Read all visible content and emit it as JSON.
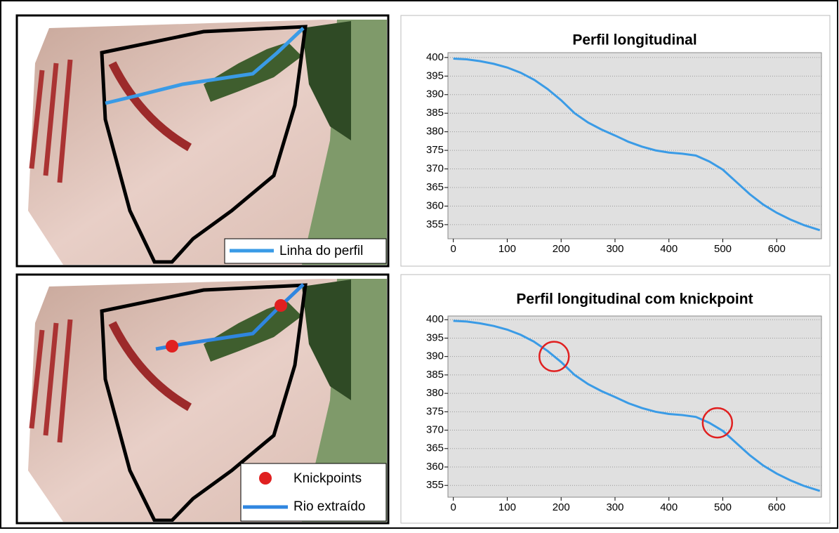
{
  "maps": [
    {
      "legend": [
        "Linha do perfil"
      ]
    },
    {
      "legend": [
        "Knickpoints",
        "Rio extraído"
      ]
    }
  ],
  "chart_data": [
    {
      "type": "line",
      "title": "Perfil longitudinal",
      "x": [
        0,
        25,
        50,
        75,
        100,
        125,
        150,
        175,
        200,
        225,
        250,
        275,
        300,
        325,
        350,
        375,
        400,
        425,
        450,
        475,
        500,
        525,
        550,
        575,
        600,
        625,
        650,
        680
      ],
      "series": [
        {
          "color": "#3a9be6",
          "values": [
            399.7,
            399.5,
            399,
            398.3,
            397.3,
            395.9,
            394,
            391.5,
            388.5,
            385,
            382.5,
            380.6,
            379,
            377.3,
            376,
            375,
            374.4,
            374.1,
            373.6,
            372,
            369.8,
            366.5,
            363.2,
            360.4,
            358.2,
            356.4,
            354.9,
            353.5
          ]
        }
      ],
      "xlim": [
        -10,
        683
      ],
      "ylim": [
        351.2,
        401.3
      ],
      "xticks": [
        0,
        100,
        200,
        300,
        400,
        500,
        600
      ],
      "yticks": [
        355,
        360,
        365,
        370,
        375,
        380,
        385,
        390,
        395,
        400
      ],
      "grid": true
    },
    {
      "type": "line",
      "title": "Perfil longitudinal com knickpoint",
      "x": [
        0,
        25,
        50,
        75,
        100,
        125,
        150,
        175,
        200,
        225,
        250,
        275,
        300,
        325,
        350,
        375,
        400,
        425,
        450,
        475,
        500,
        525,
        550,
        575,
        600,
        625,
        650,
        680
      ],
      "series": [
        {
          "color": "#3a9be6",
          "values": [
            399.7,
            399.5,
            399,
            398.3,
            397.3,
            395.9,
            394,
            391.5,
            388.5,
            385,
            382.5,
            380.6,
            379,
            377.3,
            376,
            375,
            374.4,
            374.1,
            373.6,
            372,
            369.8,
            366.5,
            363.2,
            360.4,
            358.2,
            356.4,
            354.9,
            353.5
          ]
        }
      ],
      "knickpoints": {
        "color": "#e02020",
        "x": [
          187,
          490
        ],
        "y": [
          390,
          372
        ]
      },
      "xlim": [
        -10,
        683
      ],
      "ylim": [
        351.8,
        401.0
      ],
      "xticks": [
        0,
        100,
        200,
        300,
        400,
        500,
        600
      ],
      "yticks": [
        355,
        360,
        365,
        370,
        375,
        380,
        385,
        390,
        395,
        400
      ],
      "grid": true
    }
  ]
}
